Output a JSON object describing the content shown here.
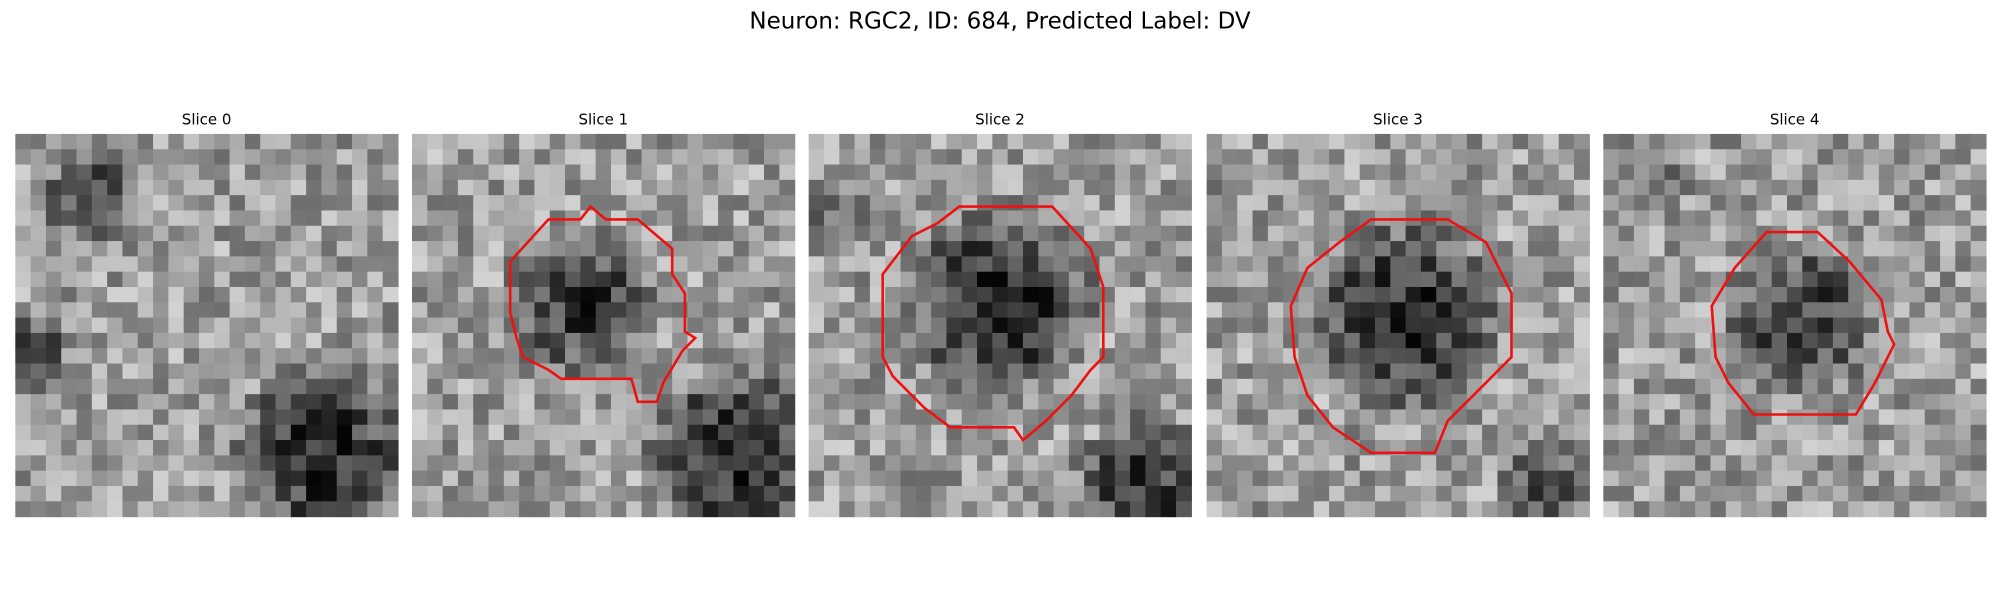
{
  "header": {
    "title": "Neuron: RGC2, ID: 684, Predicted Label: DV"
  },
  "panels": [
    {
      "title": "Slice 0"
    },
    {
      "title": "Slice 1"
    },
    {
      "title": "Slice 2"
    },
    {
      "title": "Slice 3"
    },
    {
      "title": "Slice 4"
    }
  ]
}
